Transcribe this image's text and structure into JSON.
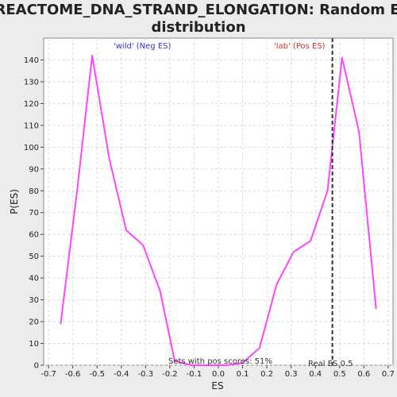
{
  "chart_data": {
    "type": "line",
    "title_lines": [
      "REACTOME_DNA_STRAND_ELONGATION: Random ES",
      "distribution"
    ],
    "xlabel": "ES",
    "ylabel": "P(ES)",
    "xlim": [
      -0.72,
      0.72
    ],
    "ylim": [
      0,
      150
    ],
    "x_ticks": [
      -0.7,
      -0.6,
      -0.5,
      -0.4,
      -0.3,
      -0.2,
      -0.1,
      0.0,
      0.1,
      0.2,
      0.3,
      0.4,
      0.5,
      0.6,
      0.7
    ],
    "x_tick_labels": [
      "-0.7",
      "-0.6",
      "-0.5",
      "-0.4",
      "-0.3",
      "-0.2",
      "-0.1",
      "0.0",
      "0.1",
      "0.2",
      "0.3",
      "0.4",
      "0.5",
      "0.6",
      "0.7"
    ],
    "y_ticks": [
      0,
      10,
      20,
      30,
      40,
      50,
      60,
      70,
      80,
      90,
      100,
      110,
      120,
      130,
      140
    ],
    "y_tick_labels": [
      "0",
      "10",
      "20",
      "30",
      "40",
      "50",
      "60",
      "70",
      "80",
      "90",
      "100",
      "110",
      "120",
      "130",
      "140"
    ],
    "grid": true,
    "series": [
      {
        "color": "#ff44ff",
        "x": [
          -0.65,
          -0.58,
          -0.52,
          -0.45,
          -0.38,
          -0.31,
          -0.24,
          -0.18,
          -0.11,
          -0.04,
          0.03,
          0.1,
          0.17,
          0.24,
          0.31,
          0.38,
          0.45,
          0.51,
          0.58,
          0.65
        ],
        "y": [
          19,
          82,
          142,
          95,
          62,
          55,
          34,
          2,
          0,
          0,
          0,
          1,
          8,
          37,
          52,
          57,
          80,
          141,
          107,
          26
        ]
      }
    ],
    "annotations": {
      "neg_label": "'wild' (Neg ES)",
      "pos_label": "'lab' (Pos ES)",
      "sets_pos": "Sets with pos scores: 51%",
      "real_es": "Real ES 0.5",
      "neg_color": "#3333cc",
      "pos_color": "#cc3333"
    },
    "real_es_line_x": 0.47
  }
}
